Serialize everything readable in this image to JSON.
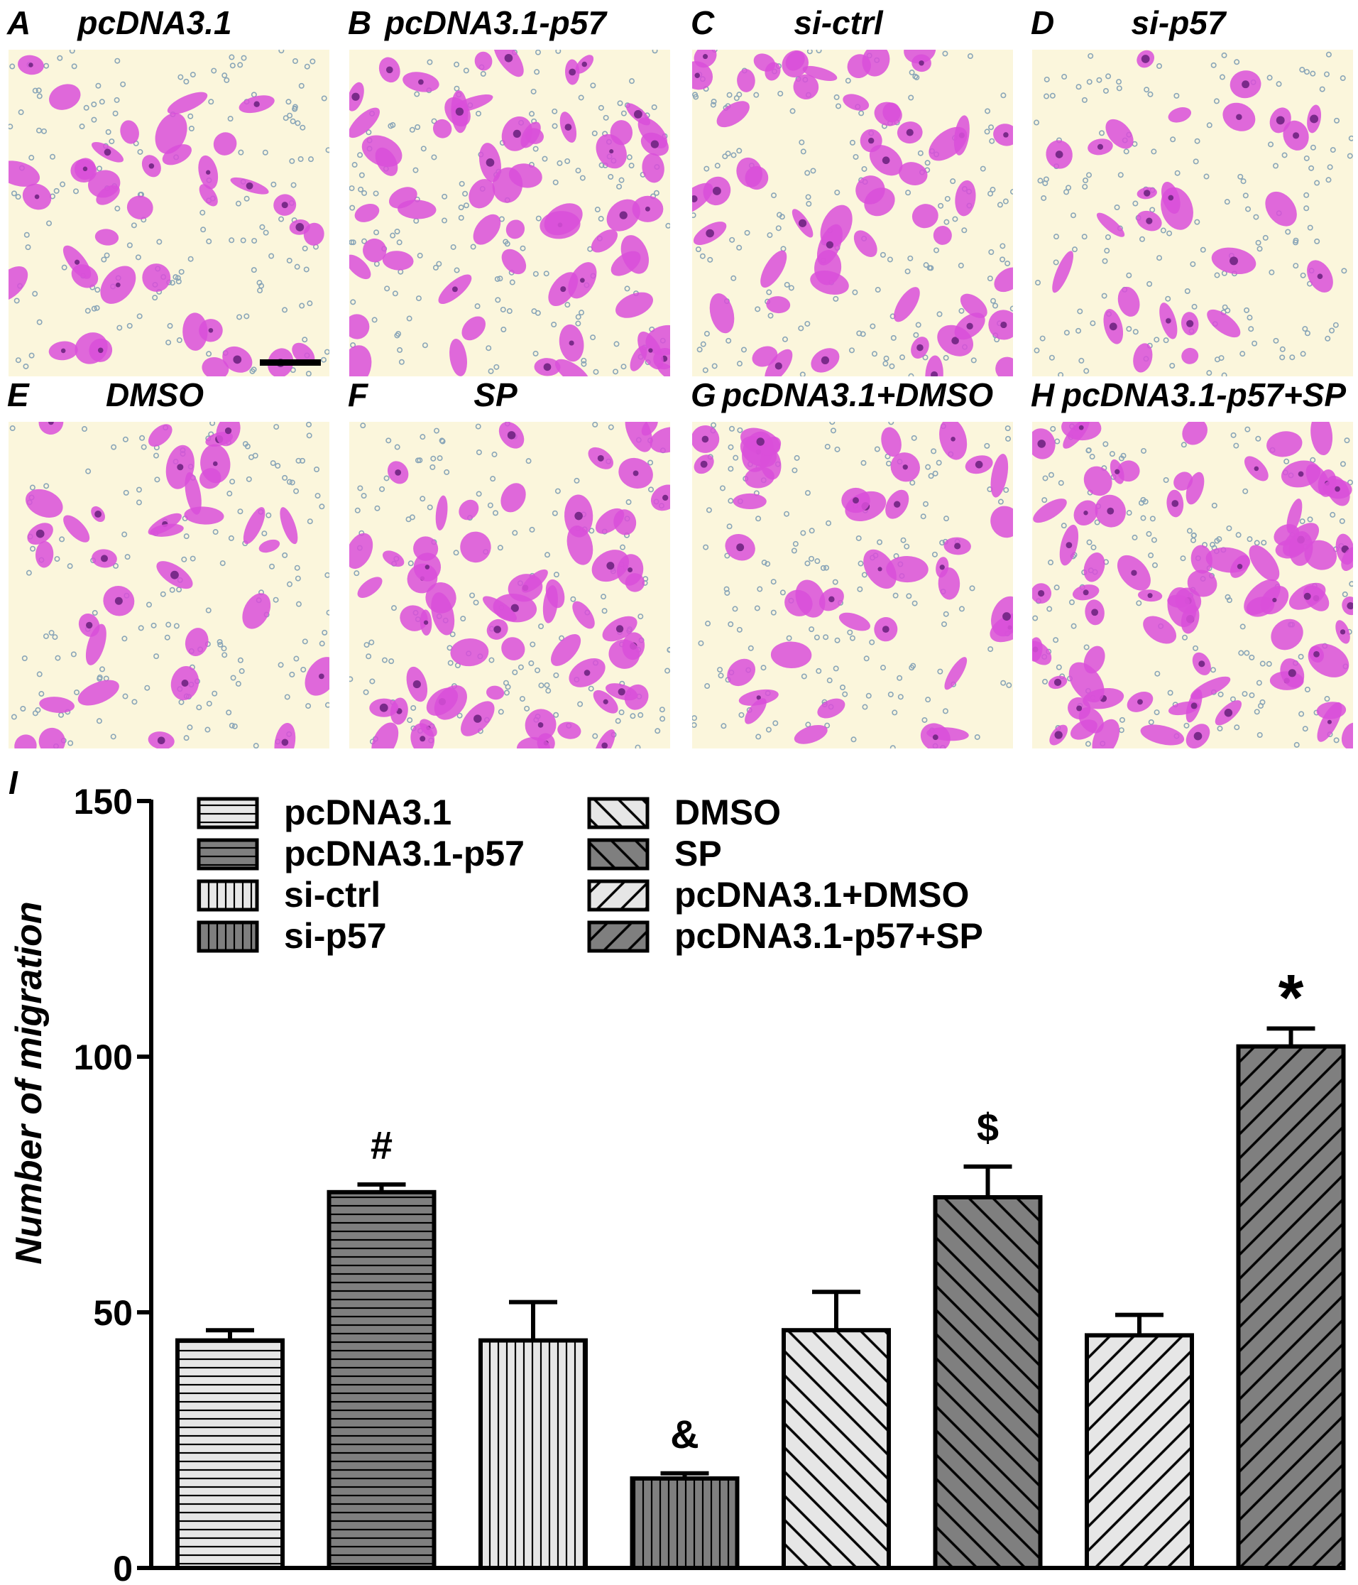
{
  "panels": [
    {
      "letter": "A",
      "title": "pcDNA3.1"
    },
    {
      "letter": "B",
      "title": "pcDNA3.1-p57"
    },
    {
      "letter": "C",
      "title": "si-ctrl"
    },
    {
      "letter": "D",
      "title": "si-p57"
    },
    {
      "letter": "E",
      "title": "DMSO"
    },
    {
      "letter": "F",
      "title": "SP"
    },
    {
      "letter": "G",
      "title": "pcDNA3.1+DMSO"
    },
    {
      "letter": "H",
      "title": "pcDNA3.1-p57+SP"
    }
  ],
  "colors": {
    "micrograph_background": "#fbf6dc",
    "cell_stain": "#d94fd9",
    "cell_stain_dark": "#7a2a8a",
    "pore": "#8aa6b8",
    "bar_light": "#e6e6e6",
    "bar_dark": "#7f7f7f"
  },
  "chart_data": {
    "type": "bar",
    "panel_letter": "I",
    "ylabel": "Number of migration",
    "ylim": [
      0,
      150
    ],
    "yticks": [
      0,
      50,
      100,
      150
    ],
    "categories": [
      "pcDNA3.1",
      "pcDNA3.1-p57",
      "si-ctrl",
      "si-p57",
      "DMSO",
      "SP",
      "pcDNA3.1+DMSO",
      "pcDNA3.1-p57+SP"
    ],
    "values": [
      44.5,
      73.5,
      44.5,
      17.5,
      46.5,
      72.5,
      45.5,
      102
    ],
    "errors": [
      2,
      1.5,
      7.5,
      1,
      7.5,
      6,
      4,
      3.5
    ],
    "patterns": [
      "hlines",
      "hlines",
      "vlines",
      "vlines",
      "diag-back",
      "diag-back",
      "diag-fwd",
      "diag-fwd"
    ],
    "shades": [
      "light",
      "dark",
      "light",
      "dark",
      "light",
      "dark",
      "light",
      "dark"
    ],
    "annotations": [
      {
        "bar": 1,
        "text": "#"
      },
      {
        "bar": 3,
        "text": "&"
      },
      {
        "bar": 5,
        "text": "$"
      },
      {
        "bar": 7,
        "text": "*"
      }
    ],
    "legend_position": "top",
    "legend_columns": 2,
    "grid": false
  }
}
